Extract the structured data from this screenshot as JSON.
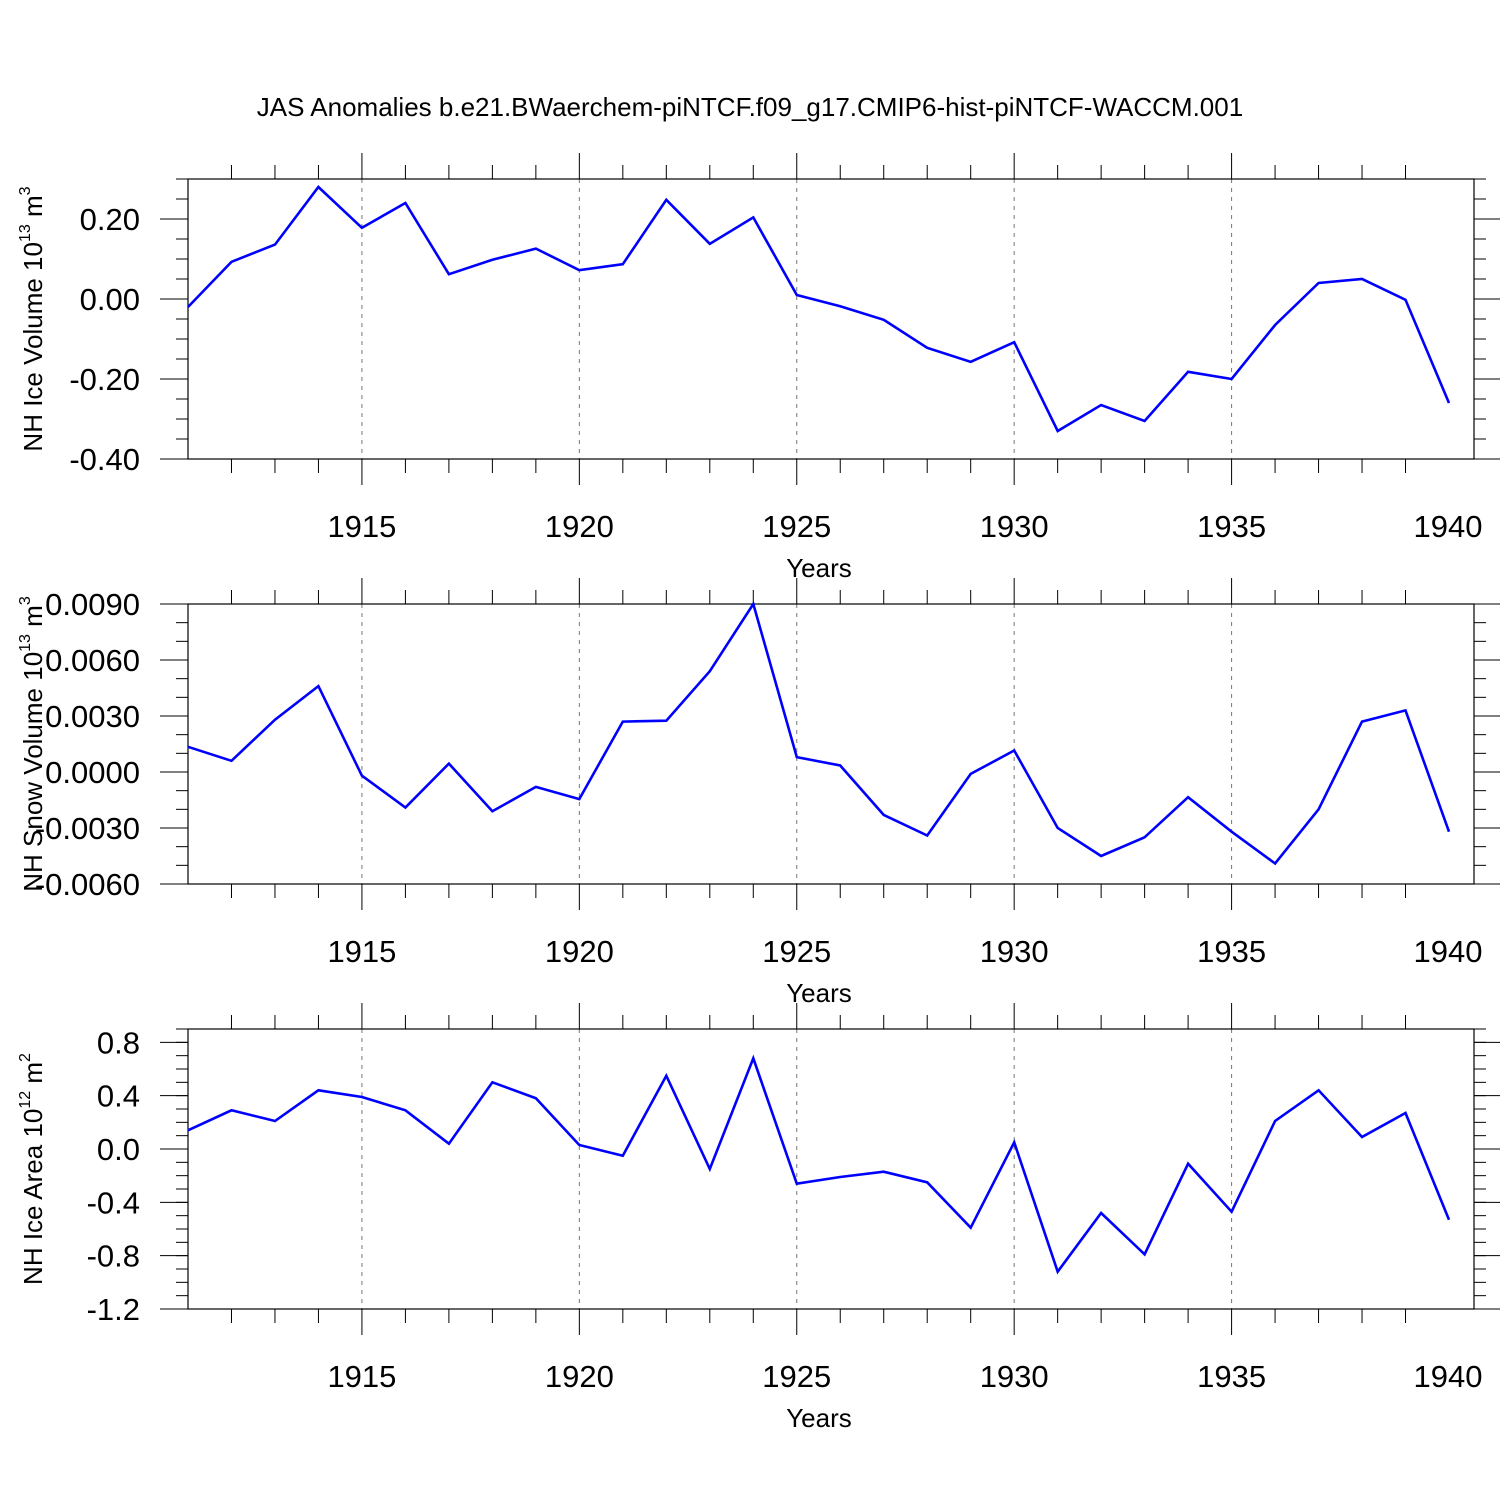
{
  "title": "JAS Anomalies b.e21.BWaerchem-piNTCF.f09_g17.CMIP6-hist-piNTCF-WACCM.001",
  "line_color": "#0000ff",
  "chart_data": [
    {
      "type": "line",
      "title": "JAS Anomalies b.e21.BWaerchem-piNTCF.f09_g17.CMIP6-hist-piNTCF-WACCM.001",
      "xlabel": "Years",
      "ylabel": {
        "main": "NH Ice Volume 10",
        "exp": "13",
        "unit": " m",
        "unit_exp": "3"
      },
      "xlim": [
        1911,
        1940
      ],
      "ylim": [
        -0.4,
        0.3
      ],
      "xticks": [
        1915,
        1920,
        1925,
        1930,
        1935,
        1940
      ],
      "yticks": [
        -0.4,
        -0.2,
        0.0,
        0.2
      ],
      "ytick_labels": [
        "-0.40",
        "-0.20",
        "0.00",
        "0.20"
      ],
      "y_minor_step": 0.05,
      "grid": "vertical-dashed-at-major-x",
      "x": [
        1911,
        1912,
        1913,
        1914,
        1915,
        1916,
        1917,
        1918,
        1919,
        1920,
        1921,
        1922,
        1923,
        1924,
        1925,
        1926,
        1927,
        1928,
        1929,
        1930,
        1931,
        1932,
        1933,
        1934,
        1935,
        1936,
        1937,
        1938,
        1939,
        1940
      ],
      "values": [
        -0.02,
        0.093,
        0.136,
        0.28,
        0.178,
        0.24,
        0.062,
        0.098,
        0.126,
        0.072,
        0.087,
        0.248,
        0.138,
        0.204,
        0.01,
        -0.018,
        -0.052,
        -0.122,
        -0.157,
        -0.108,
        -0.33,
        -0.265,
        -0.305,
        -0.182,
        -0.2,
        -0.065,
        0.04,
        0.05,
        -0.002,
        -0.26
      ]
    },
    {
      "type": "line",
      "xlabel": "Years",
      "ylabel": {
        "main": "NH Snow Volume 10",
        "exp": "13",
        "unit": " m",
        "unit_exp": "3"
      },
      "xlim": [
        1911,
        1940
      ],
      "ylim": [
        -0.006,
        0.009
      ],
      "xticks": [
        1915,
        1920,
        1925,
        1930,
        1935,
        1940
      ],
      "yticks": [
        -0.006,
        -0.003,
        0.0,
        0.003,
        0.006,
        0.009
      ],
      "ytick_labels": [
        "-0.0060",
        "-0.0030",
        "0.0000",
        "0.0030",
        "0.0060",
        "0.0090"
      ],
      "y_minor_step": 0.001,
      "grid": "vertical-dashed-at-major-x",
      "x": [
        1911,
        1912,
        1913,
        1914,
        1915,
        1916,
        1917,
        1918,
        1919,
        1920,
        1921,
        1922,
        1923,
        1924,
        1925,
        1926,
        1927,
        1928,
        1929,
        1930,
        1931,
        1932,
        1933,
        1934,
        1935,
        1936,
        1937,
        1938,
        1939,
        1940
      ],
      "values": [
        0.00135,
        0.0006,
        0.0028,
        0.0046,
        -0.0002,
        -0.0019,
        0.00045,
        -0.0021,
        -0.0008,
        -0.00145,
        0.0027,
        0.00275,
        0.0054,
        0.009,
        0.0008,
        0.00035,
        -0.0023,
        -0.0034,
        -0.0001,
        0.00115,
        -0.003,
        -0.0045,
        -0.0035,
        -0.00135,
        -0.0032,
        -0.0049,
        -0.002,
        0.0027,
        0.0033,
        -0.0032
      ]
    },
    {
      "type": "line",
      "xlabel": "Years",
      "ylabel": {
        "main": "NH Ice Area 10",
        "exp": "12",
        "unit": " m",
        "unit_exp": "2"
      },
      "xlim": [
        1911,
        1940
      ],
      "ylim": [
        -1.2,
        0.9
      ],
      "xticks": [
        1915,
        1920,
        1925,
        1930,
        1935,
        1940
      ],
      "yticks": [
        -1.2,
        -0.8,
        -0.4,
        0.0,
        0.4,
        0.8
      ],
      "ytick_labels": [
        "-1.2",
        "-0.8",
        "-0.4",
        "0.0",
        "0.4",
        "0.8"
      ],
      "y_minor_step": 0.1,
      "grid": "vertical-dashed-at-major-x",
      "x": [
        1911,
        1912,
        1913,
        1914,
        1915,
        1916,
        1917,
        1918,
        1919,
        1920,
        1921,
        1922,
        1923,
        1924,
        1925,
        1926,
        1927,
        1928,
        1929,
        1930,
        1931,
        1932,
        1933,
        1934,
        1935,
        1936,
        1937,
        1938,
        1939,
        1940
      ],
      "values": [
        0.14,
        0.29,
        0.21,
        0.44,
        0.39,
        0.29,
        0.04,
        0.5,
        0.38,
        0.03,
        -0.05,
        0.55,
        -0.15,
        0.68,
        -0.26,
        -0.21,
        -0.17,
        -0.25,
        -0.59,
        0.05,
        -0.92,
        -0.48,
        -0.79,
        -0.11,
        -0.47,
        0.21,
        0.44,
        0.09,
        0.27,
        -0.53
      ]
    }
  ]
}
